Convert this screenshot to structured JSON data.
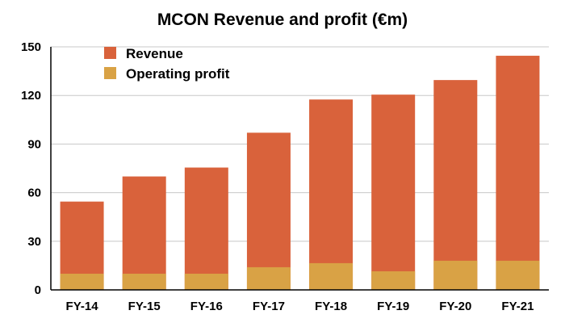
{
  "chart_data": {
    "type": "bar",
    "stacked": true,
    "title": "MCON Revenue and profit (€m)",
    "xlabel": "",
    "ylabel": "",
    "categories": [
      "FY-14",
      "FY-15",
      "FY-16",
      "FY-17",
      "FY-18",
      "FY-19",
      "FY-20",
      "FY-21"
    ],
    "ylim": [
      0,
      150
    ],
    "yticks": [
      0,
      30,
      60,
      90,
      120,
      150
    ],
    "grid": true,
    "legend_position": "top-left",
    "series": [
      {
        "name": "Revenue",
        "color": "#D9623B",
        "values": [
          54.5,
          70,
          75.5,
          97,
          117.5,
          120.5,
          129.5,
          144.5
        ]
      },
      {
        "name": "Operating profit",
        "color": "#D9A245",
        "values": [
          10,
          10,
          10,
          14,
          16.5,
          11.5,
          18,
          18
        ]
      }
    ]
  }
}
